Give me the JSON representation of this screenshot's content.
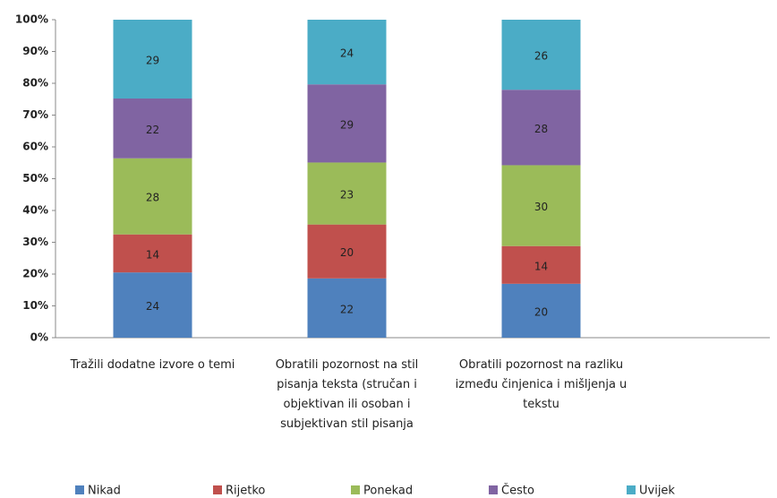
{
  "chart_data": {
    "type": "bar",
    "stacking": "percent",
    "categories": [
      "Tražili dodatne izvore o temi",
      "Obratili pozornost na stil pisanja teksta (stručan i objektivan ili osoban i subjektivan stil pisanja",
      "Obratili pozornost na razliku između činjenica i mišljenja u tekstu"
    ],
    "series": [
      {
        "name": "Nikad",
        "color": "#4f81bd",
        "values": [
          24,
          22,
          20
        ]
      },
      {
        "name": "Rijetko",
        "color": "#c0504d",
        "values": [
          14,
          20,
          14
        ]
      },
      {
        "name": "Ponekad",
        "color": "#9bbb59",
        "values": [
          28,
          23,
          30
        ]
      },
      {
        "name": "Često",
        "color": "#8064a2",
        "values": [
          22,
          29,
          28
        ]
      },
      {
        "name": "Uvijek",
        "color": "#4bacc6",
        "values": [
          29,
          24,
          26
        ]
      }
    ],
    "ylim": [
      0,
      100
    ],
    "yticks": [
      {
        "value": 0,
        "label": "0%"
      },
      {
        "value": 10,
        "label": "10%"
      },
      {
        "value": 20,
        "label": "20%"
      },
      {
        "value": 30,
        "label": "30%"
      },
      {
        "value": 40,
        "label": "40%"
      },
      {
        "value": 50,
        "label": "50%"
      },
      {
        "value": 60,
        "label": "60%"
      },
      {
        "value": 70,
        "label": "70%"
      },
      {
        "value": 80,
        "label": "80%"
      },
      {
        "value": 90,
        "label": "90%"
      },
      {
        "value": 100,
        "label": "100%"
      }
    ],
    "grid": false,
    "legend": "bottom"
  }
}
